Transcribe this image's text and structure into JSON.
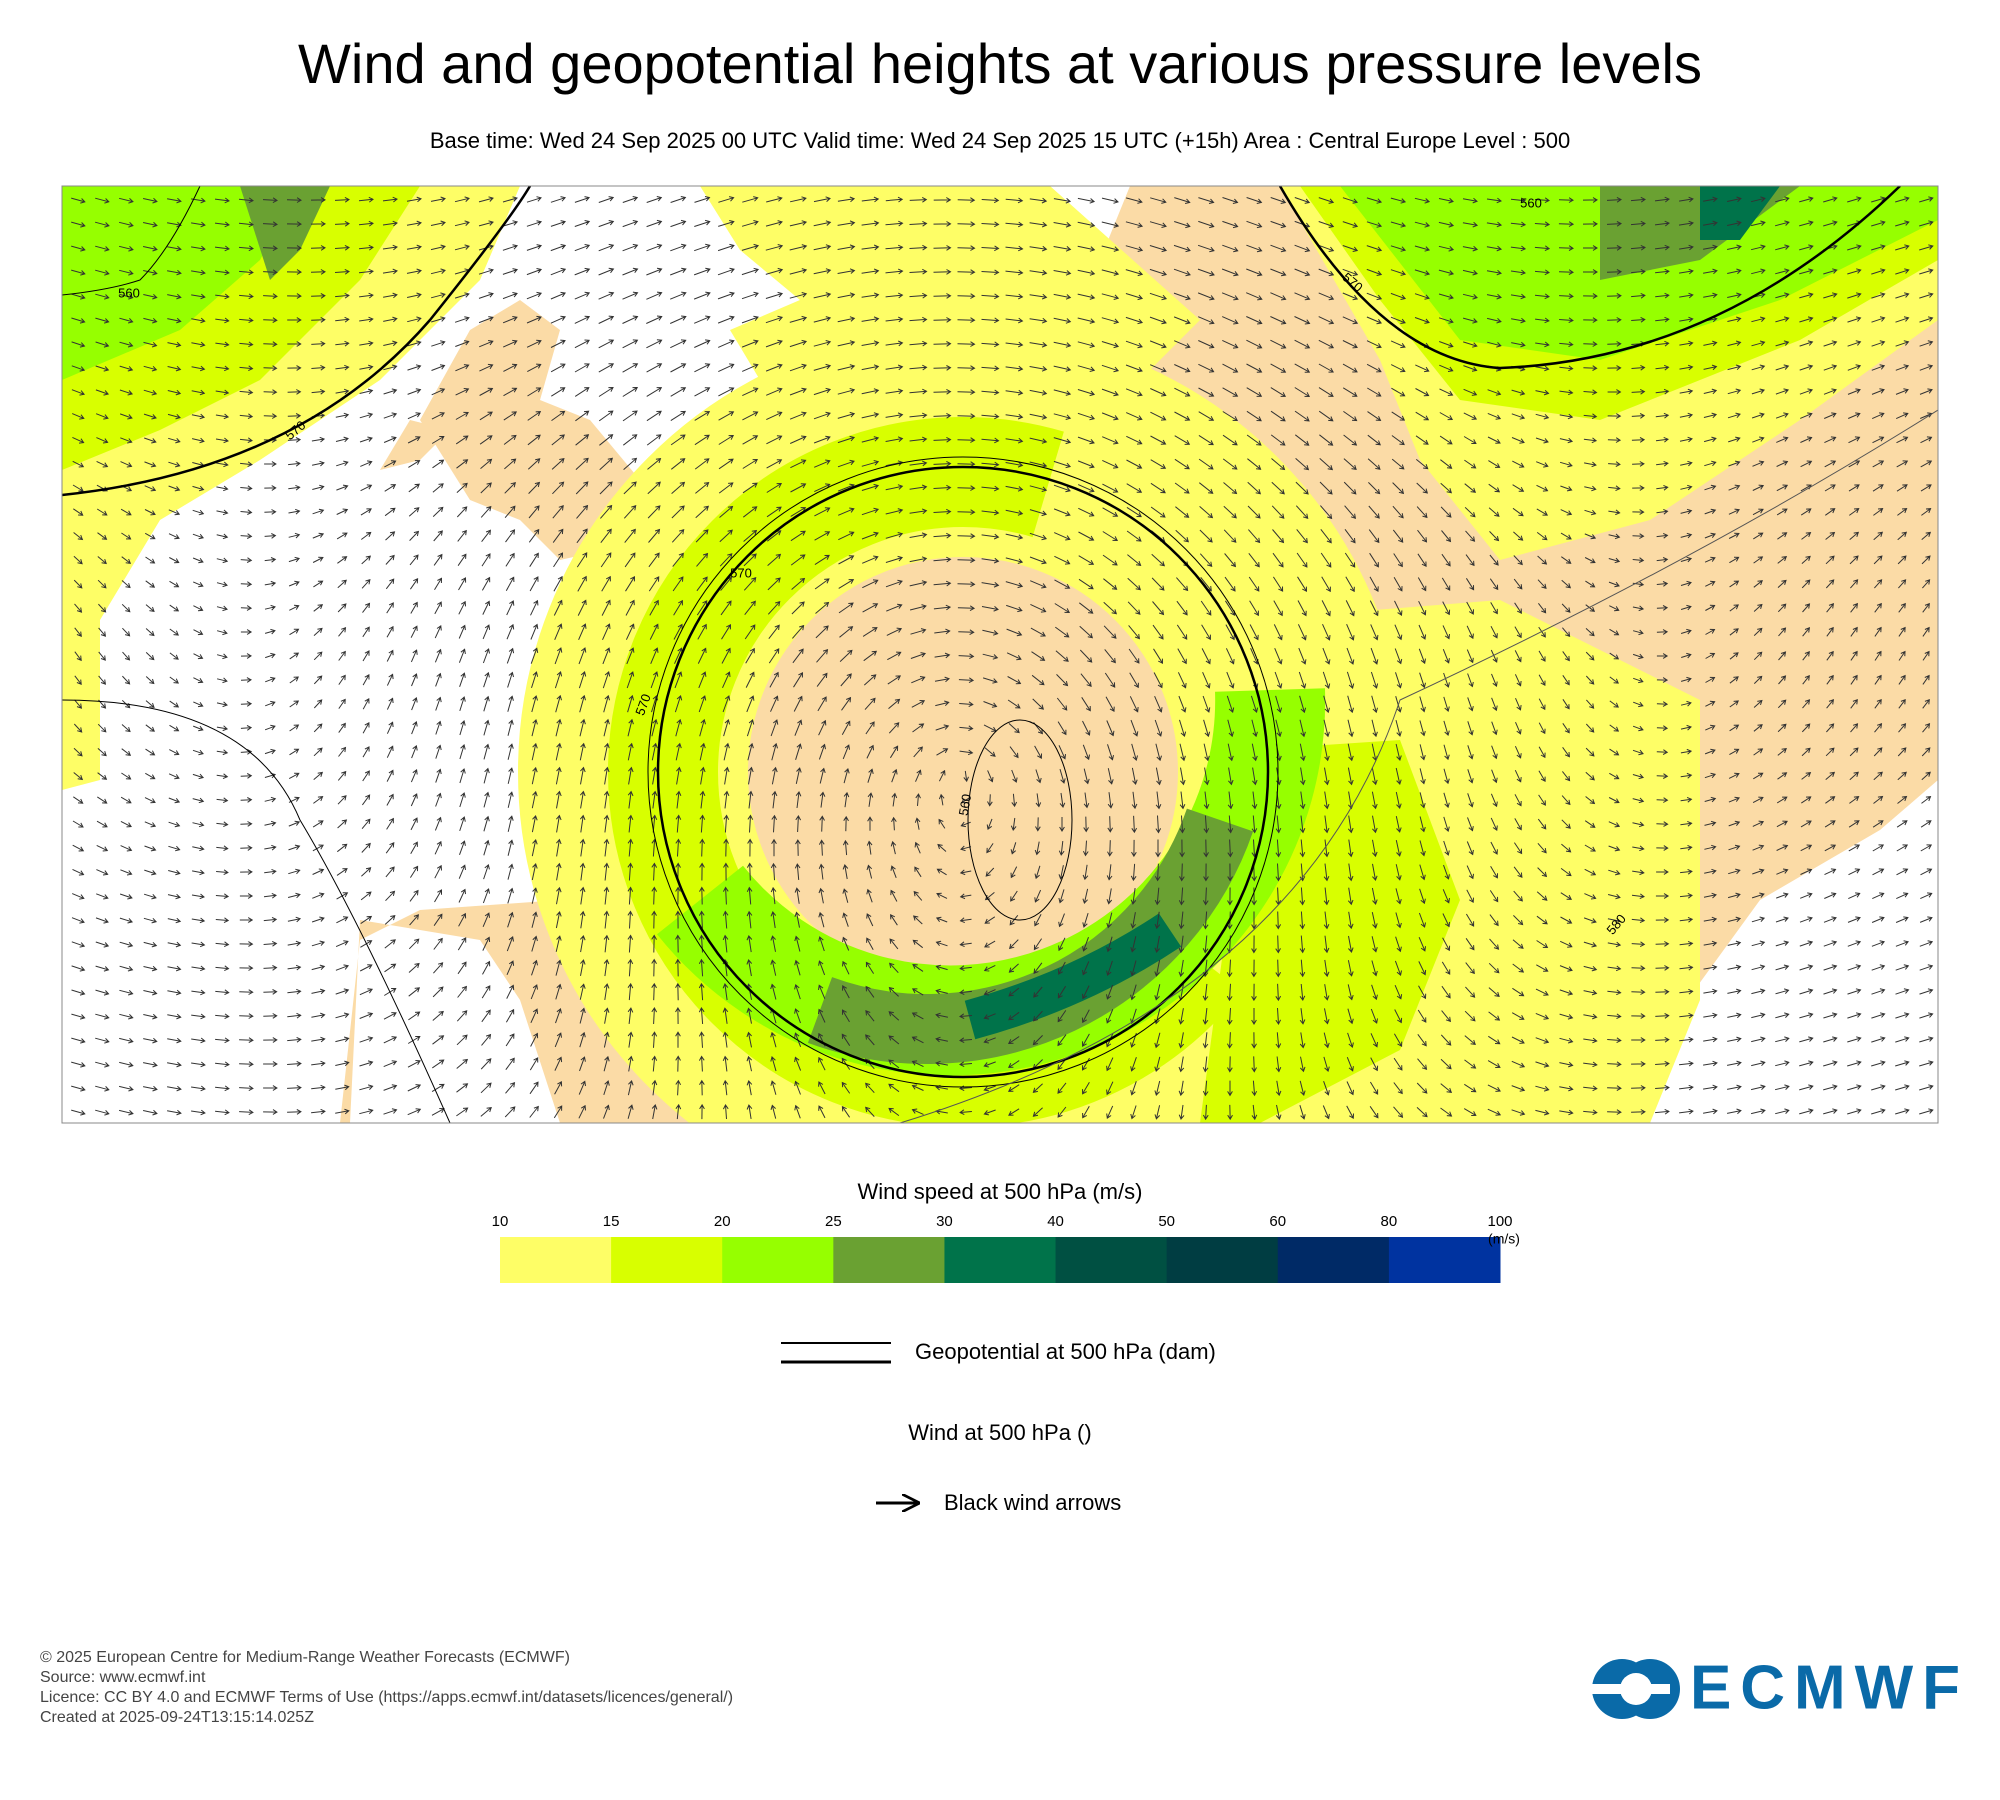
{
  "header": {
    "title": "Wind and geopotential heights at various pressure levels",
    "subtitle": "Base time: Wed 24 Sep 2025 00 UTC Valid time: Wed 24 Sep 2025 15 UTC (+15h) Area : Central Europe Level : 500"
  },
  "map": {
    "contour_labels": [
      560,
      570,
      570,
      570,
      560,
      560,
      570,
      580
    ]
  },
  "colorbar": {
    "title": "Wind speed at 500 hPa (m/s)",
    "ticks": [
      10,
      15,
      20,
      25,
      30,
      40,
      50,
      60,
      80,
      100
    ],
    "unit": "(m/s)",
    "colors": [
      "#fefe66",
      "#d8ff00",
      "#96ff00",
      "#6aa132",
      "#00734a",
      "#005042",
      "#003d42",
      "#002a66",
      "#0033a0"
    ]
  },
  "legend": {
    "contour_label": "Geopotential at 500 hPa (dam)",
    "wind_title": "Wind at 500 hPa ()",
    "wind_label": "Black wind arrows"
  },
  "footer": {
    "lines": [
      "© 2025 European Centre for Medium-Range Weather Forecasts (ECMWF)",
      "Source: www.ecmwf.int",
      "Licence: CC BY 4.0 and ECMWF Terms of Use (https://apps.ecmwf.int/datasets/licences/general/)",
      "Created at 2025-09-24T13:15:14.025Z"
    ]
  },
  "logo": {
    "text": "ECMWF"
  }
}
